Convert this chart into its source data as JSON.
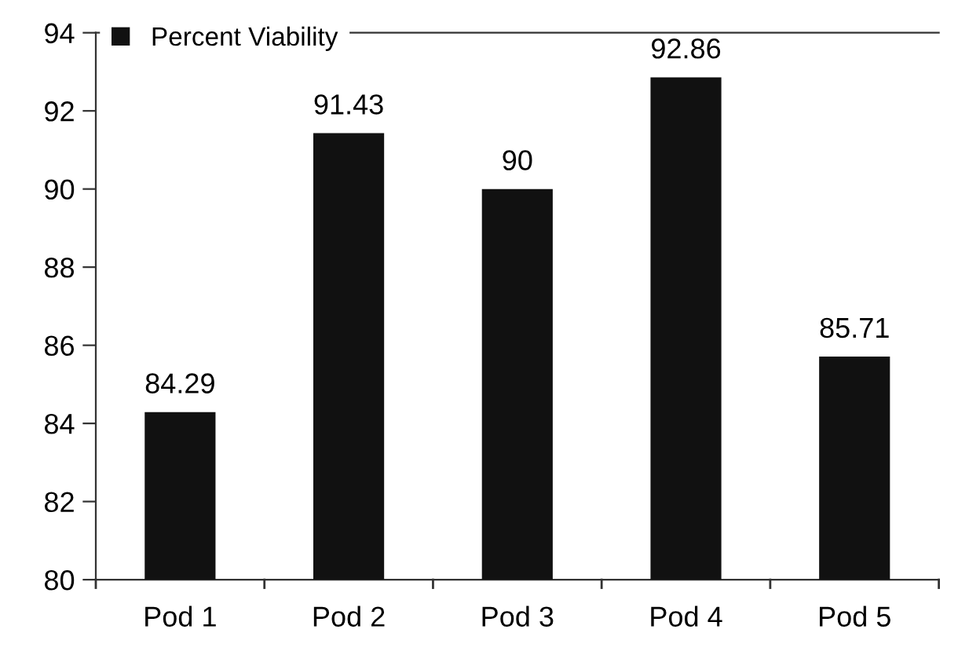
{
  "chart_data": {
    "type": "bar",
    "categories": [
      "Pod 1",
      "Pod 2",
      "Pod 3",
      "Pod 4",
      "Pod 5"
    ],
    "series": [
      {
        "name": "Percent Viability",
        "color": "#111111",
        "values": [
          84.29,
          91.43,
          90,
          92.86,
          85.71
        ]
      }
    ],
    "ylim": [
      80,
      94
    ],
    "yticks": [
      80,
      82,
      84,
      86,
      88,
      90,
      92,
      94
    ],
    "data_labels": true,
    "legend": "top left"
  }
}
